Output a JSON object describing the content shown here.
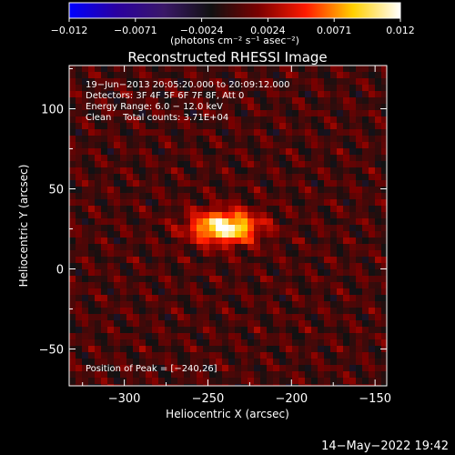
{
  "colorbar": {
    "ticks": [
      "−0.012",
      "−0.0071",
      "−0.0024",
      "0.0024",
      "0.0071",
      "0.012"
    ],
    "unit_label": "(photons cm⁻² s⁻¹ asec⁻²)",
    "range": [
      -0.012,
      0.012
    ],
    "colormap": [
      "#0000ff",
      "#2a00a0",
      "#3a1868",
      "#111111",
      "#7a0000",
      "#ff1a00",
      "#ffd000",
      "#ffffff"
    ]
  },
  "chart_data": {
    "type": "heatmap",
    "title": "Reconstructed RHESSI Image",
    "xlabel": "Heliocentric X (arcsec)",
    "ylabel": "Heliocentric Y (arcsec)",
    "xlim": [
      -333,
      -143
    ],
    "ylim": [
      -73,
      127
    ],
    "xticks": [
      -300,
      -250,
      -200,
      -150
    ],
    "yticks": [
      -50,
      0,
      50,
      100
    ],
    "peak": {
      "x": -240,
      "y": 26,
      "value": 0.012
    },
    "annotations": [
      "19−Jun−2013 20:05:20.000 to 20:09:12.000",
      "Detectors: 3F 4F 5F 6F 7F 8F, Att 0",
      "Energy Range: 6.0 − 12.0 keV",
      "Clean    Total counts: 3.71E+04"
    ],
    "peak_label": "Position of Peak = [−240,26]"
  },
  "footer": {
    "timestamp": "14−May−2022 19:42"
  }
}
